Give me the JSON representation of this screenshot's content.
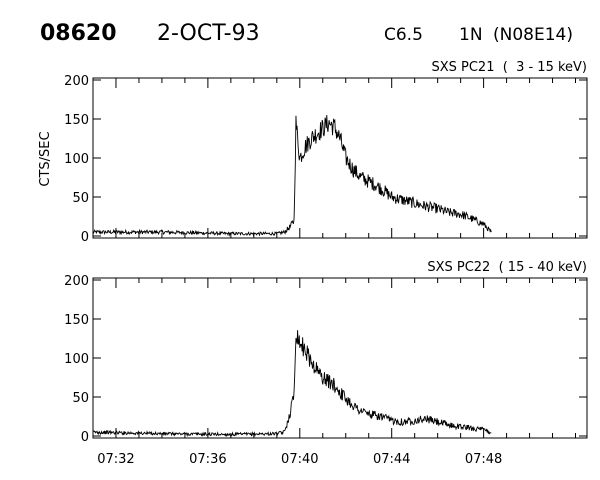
{
  "header": {
    "event_id": "08620",
    "date": "2-OCT-93",
    "goes_class": "C6.5",
    "importance": "1N",
    "location": "(N08E14)"
  },
  "chart_data": [
    {
      "type": "line",
      "title": "SXS PC21  (  3 - 15 keV)",
      "ylabel": "CTS/SEC",
      "xlabel": "",
      "xlim": [
        "07:31:00",
        "07:52:30"
      ],
      "ylim": [
        0,
        200
      ],
      "yticks": [
        0,
        50,
        100,
        150,
        200
      ],
      "xticks": [
        "07:32",
        "07:36",
        "07:40",
        "07:44",
        "07:48"
      ],
      "grid": false,
      "series": [
        {
          "x": [
            "07:31:00",
            "07:34:00",
            "07:37:00",
            "07:39:00",
            "07:39:20",
            "07:39:35",
            "07:39:45",
            "07:39:50",
            "07:40:00",
            "07:40:15",
            "07:40:30",
            "07:40:45",
            "07:41:00",
            "07:41:15",
            "07:41:30",
            "07:41:45",
            "07:42:00",
            "07:42:20",
            "07:42:40",
            "07:43:00",
            "07:43:20",
            "07:43:40",
            "07:44:00",
            "07:44:30",
            "07:45:00",
            "07:45:30",
            "07:46:00",
            "07:46:30",
            "07:47:00",
            "07:47:30",
            "07:48:00",
            "07:48:20"
          ],
          "values": [
            5,
            5,
            3,
            3,
            5,
            12,
            20,
            145,
            100,
            115,
            125,
            132,
            138,
            145,
            140,
            125,
            100,
            85,
            75,
            70,
            65,
            58,
            50,
            46,
            42,
            38,
            35,
            30,
            28,
            22,
            15,
            5
          ]
        }
      ]
    },
    {
      "type": "line",
      "title": "SXS PC22  ( 15 - 40 keV)",
      "ylabel": "",
      "xlabel": "",
      "xlim": [
        "07:31:00",
        "07:52:30"
      ],
      "ylim": [
        0,
        200
      ],
      "yticks": [
        0,
        50,
        100,
        150,
        200
      ],
      "xticks": [
        "07:32",
        "07:36",
        "07:40",
        "07:44",
        "07:48"
      ],
      "grid": false,
      "series": [
        {
          "x": [
            "07:31:00",
            "07:34:00",
            "07:37:00",
            "07:39:00",
            "07:39:20",
            "07:39:35",
            "07:39:45",
            "07:39:50",
            "07:40:00",
            "07:40:15",
            "07:40:30",
            "07:40:45",
            "07:41:00",
            "07:41:15",
            "07:41:30",
            "07:42:00",
            "07:42:30",
            "07:43:00",
            "07:43:30",
            "07:44:00",
            "07:44:30",
            "07:45:00",
            "07:45:30",
            "07:46:00",
            "07:46:30",
            "07:47:00",
            "07:47:30",
            "07:48:00",
            "07:48:20"
          ],
          "values": [
            5,
            3,
            2,
            3,
            5,
            30,
            55,
            135,
            120,
            110,
            95,
            85,
            75,
            70,
            65,
            48,
            35,
            28,
            25,
            20,
            18,
            20,
            22,
            18,
            14,
            12,
            10,
            8,
            4
          ]
        }
      ]
    }
  ]
}
